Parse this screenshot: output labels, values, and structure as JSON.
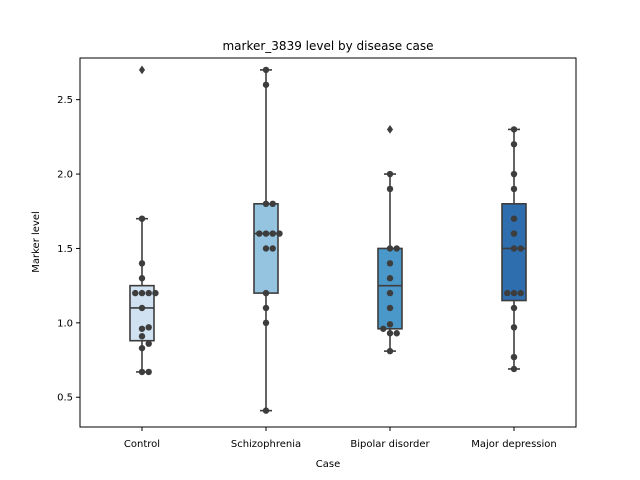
{
  "chart_data": {
    "type": "box",
    "title": "marker_3839 level by disease case",
    "xlabel": "Case",
    "ylabel": "Marker level",
    "ylim": [
      0.3,
      2.78
    ],
    "yticks": [
      "0.5",
      "1.0",
      "1.5",
      "2.0",
      "2.5"
    ],
    "grid": false,
    "legend": "none",
    "categories": [
      "Control",
      "Schizophrenia",
      "Bipolar disorder",
      "Major depression"
    ],
    "colors": [
      "#d0e1f2",
      "#94c4df",
      "#4a98c9",
      "#2e6eaf"
    ],
    "boxes": [
      {
        "category": "Control",
        "whisker_low": 0.67,
        "q1": 0.88,
        "median": 1.1,
        "q3": 1.25,
        "whisker_high": 1.7,
        "outliers": [
          2.7
        ]
      },
      {
        "category": "Schizophrenia",
        "whisker_low": 0.41,
        "q1": 1.2,
        "median": 1.6,
        "q3": 1.8,
        "whisker_high": 2.7,
        "outliers": []
      },
      {
        "category": "Bipolar disorder",
        "whisker_low": 0.81,
        "q1": 0.96,
        "median": 1.25,
        "q3": 1.5,
        "whisker_high": 2.0,
        "outliers": [
          2.3
        ]
      },
      {
        "category": "Major depression",
        "whisker_low": 0.69,
        "q1": 1.15,
        "median": 1.5,
        "q3": 1.8,
        "whisker_high": 2.3,
        "outliers": []
      }
    ],
    "points": [
      {
        "category": "Control",
        "values": [
          0.67,
          0.67,
          0.83,
          0.86,
          0.91,
          0.96,
          0.97,
          1.1,
          1.2,
          1.2,
          1.2,
          1.2,
          1.3,
          1.4,
          1.7
        ]
      },
      {
        "category": "Schizophrenia",
        "values": [
          0.41,
          1.0,
          1.1,
          1.2,
          1.5,
          1.5,
          1.6,
          1.6,
          1.6,
          1.6,
          1.8,
          1.8,
          2.6,
          2.7
        ]
      },
      {
        "category": "Bipolar disorder",
        "values": [
          0.81,
          0.93,
          0.93,
          0.96,
          0.99,
          1.1,
          1.2,
          1.3,
          1.4,
          1.5,
          1.5,
          1.9,
          2.0
        ]
      },
      {
        "category": "Major depression",
        "values": [
          0.69,
          0.77,
          0.97,
          1.1,
          1.2,
          1.2,
          1.2,
          1.5,
          1.5,
          1.6,
          1.7,
          1.9,
          2.0,
          2.2,
          2.3
        ]
      }
    ]
  }
}
